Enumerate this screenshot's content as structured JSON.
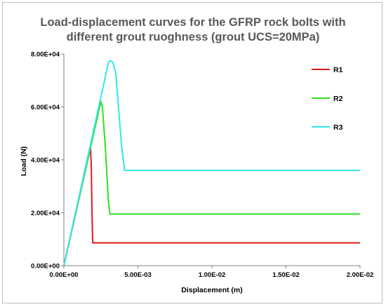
{
  "chart_data": {
    "type": "line",
    "title_lines": [
      "Load-displacement curves for the GFRP rock bolts with",
      "different grout ruoghness (grout UCS=20MPa)"
    ],
    "xlabel": "Displacement (m)",
    "ylabel": "Load (N)",
    "xlim": [
      0,
      0.02
    ],
    "ylim": [
      0,
      80000
    ],
    "x_ticks": [
      {
        "value": 0,
        "label": "0.00E+00"
      },
      {
        "value": 0.005,
        "label": "5.00E-03"
      },
      {
        "value": 0.01,
        "label": "1.00E-02"
      },
      {
        "value": 0.015,
        "label": "1.50E-02"
      },
      {
        "value": 0.02,
        "label": "2.00E-02"
      }
    ],
    "y_ticks": [
      {
        "value": 0,
        "label": "0.00E+00"
      },
      {
        "value": 20000,
        "label": "2.00E+04"
      },
      {
        "value": 40000,
        "label": "4.00E+04"
      },
      {
        "value": 60000,
        "label": "6.00E+04"
      },
      {
        "value": 80000,
        "label": "8.00E+04"
      }
    ],
    "grid": false,
    "legend_position": "right",
    "series": [
      {
        "name": "R1",
        "color": "#e31a1c",
        "points": [
          [
            0,
            0
          ],
          [
            0.0018,
            44500
          ],
          [
            0.00185,
            38000
          ],
          [
            0.0019,
            20000
          ],
          [
            0.00195,
            8600
          ],
          [
            0.02,
            8600
          ]
        ]
      },
      {
        "name": "R2",
        "color": "#33dd22",
        "points": [
          [
            0,
            0
          ],
          [
            0.0025,
            62000
          ],
          [
            0.0026,
            60000
          ],
          [
            0.0028,
            45000
          ],
          [
            0.003,
            25000
          ],
          [
            0.0031,
            19500
          ],
          [
            0.02,
            19500
          ]
        ]
      },
      {
        "name": "R3",
        "color": "#33e6e6",
        "points": [
          [
            0,
            0
          ],
          [
            0.003,
            76500
          ],
          [
            0.0031,
            77500
          ],
          [
            0.0033,
            77000
          ],
          [
            0.0035,
            73000
          ],
          [
            0.0039,
            45000
          ],
          [
            0.0041,
            36000
          ],
          [
            0.02,
            36000
          ]
        ]
      }
    ]
  }
}
